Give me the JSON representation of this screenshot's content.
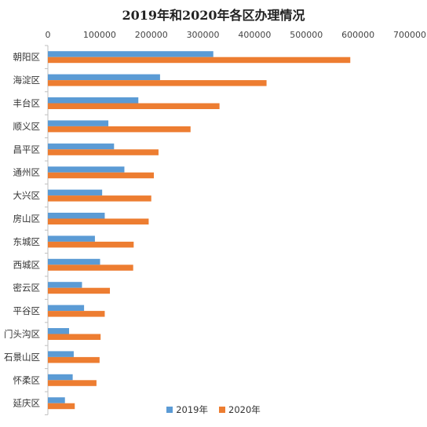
{
  "chart_data": {
    "type": "bar",
    "orientation": "horizontal",
    "title": "2019年和2020年各区办理情况",
    "categories": [
      "朝阳区",
      "海淀区",
      "丰台区",
      "顺义区",
      "昌平区",
      "通州区",
      "大兴区",
      "房山区",
      "东城区",
      "西城区",
      "密云区",
      "平谷区",
      "门头沟区",
      "石景山区",
      "怀柔区",
      "延庆区"
    ],
    "series": [
      {
        "name": "2019年",
        "color": "#5b9bd5",
        "values": [
          320000,
          217000,
          175000,
          117000,
          128000,
          148000,
          105000,
          110000,
          91000,
          101000,
          66000,
          70000,
          41000,
          50000,
          48000,
          33000
        ]
      },
      {
        "name": "2020年",
        "color": "#ed7d31",
        "values": [
          585000,
          423000,
          332000,
          276000,
          214000,
          205000,
          200000,
          195000,
          166000,
          165000,
          120000,
          110000,
          102000,
          100000,
          94000,
          52000
        ]
      }
    ],
    "xlim": [
      0,
      700000
    ],
    "x_ticks": [
      "0",
      "100000",
      "200000",
      "300000",
      "400000",
      "500000",
      "600000",
      "700000"
    ],
    "grid": false,
    "legend_position": "bottom"
  }
}
